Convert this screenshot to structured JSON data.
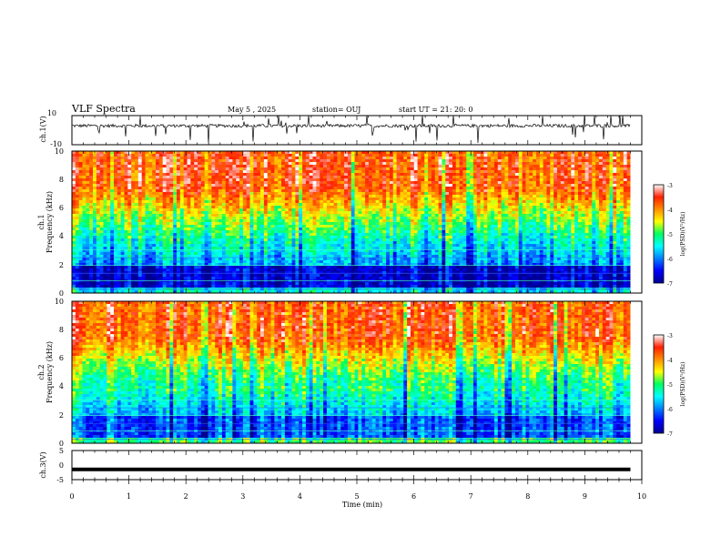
{
  "header": {
    "title": "VLF Spectra",
    "date": "May 5  , 2025",
    "station": "station= OUJ",
    "start": "start  UT  =   21: 20: 0"
  },
  "chart_data": [
    {
      "type": "line",
      "name": "ch1-waveform",
      "ylabel": "ch.1(V)",
      "ylim": [
        -10,
        10
      ],
      "yticks": [
        "10",
        "-10"
      ],
      "xlim": [
        0,
        10
      ],
      "data_end_min": 9.8,
      "baseline_v": 3.0
    },
    {
      "type": "heatmap",
      "name": "ch1-spectrogram",
      "ylabel_line1": "ch.1",
      "ylabel_line2": "Frequency (kHz)",
      "ylim": [
        0,
        10
      ],
      "yticks": [
        "0",
        "2",
        "4",
        "6",
        "8",
        "10"
      ],
      "xlim": [
        0,
        10
      ],
      "data_end_min": 9.8,
      "colorbar": {
        "min": -7,
        "max": -3,
        "ticks": [
          "-3",
          "-4",
          "-5",
          "-6",
          "-7"
        ],
        "label": "log(PSD)(V²/Hz)"
      }
    },
    {
      "type": "heatmap",
      "name": "ch2-spectrogram",
      "ylabel_line1": "ch.2",
      "ylabel_line2": "Frequency (kHz)",
      "ylim": [
        0,
        10
      ],
      "yticks": [
        "0",
        "2",
        "4",
        "6",
        "8",
        "10"
      ],
      "xlim": [
        0,
        10
      ],
      "data_end_min": 9.8,
      "colorbar": {
        "min": -7,
        "max": -3,
        "ticks": [
          "-3",
          "-4",
          "-5",
          "-6",
          "-7"
        ],
        "label": "log(PSD)(V²/Hz)"
      }
    },
    {
      "type": "line",
      "name": "ch3-waveform",
      "ylabel": "ch.3(V)",
      "ylim": [
        -5,
        5
      ],
      "yticks": [
        "5",
        "0",
        "-5"
      ],
      "xlim": [
        0,
        10
      ],
      "data_end_min": 9.8,
      "constant_value_v": -1.5,
      "xlabel": "Time  (min)",
      "xticks": [
        "0",
        "1",
        "2",
        "3",
        "4",
        "5",
        "6",
        "7",
        "8",
        "9",
        "10"
      ]
    }
  ]
}
